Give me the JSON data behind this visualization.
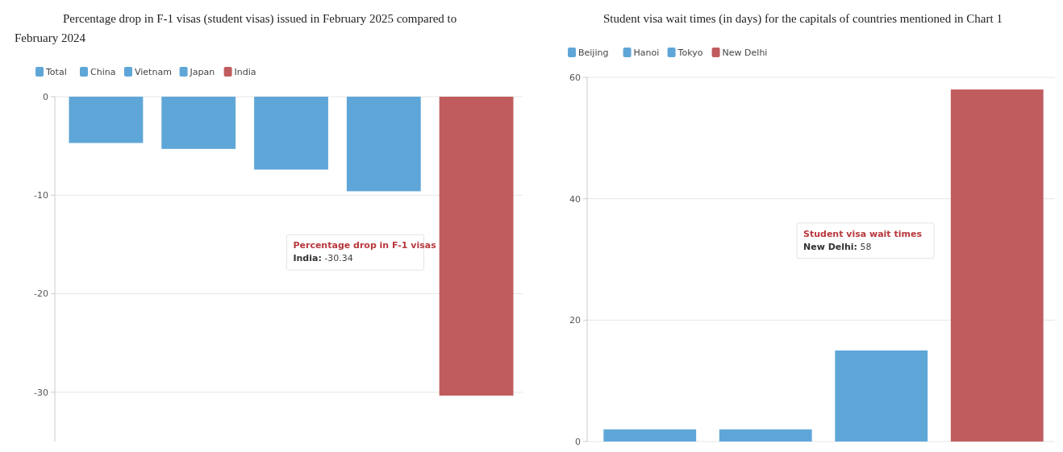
{
  "chart_data": [
    {
      "type": "bar",
      "title": "Percentage drop in F-1 visas (student visas) issued in February 2025 compared to February 2024",
      "categories": [
        null
      ],
      "series": [
        {
          "name": "Total",
          "color": "#5fa6d8",
          "values": [
            -4.7
          ]
        },
        {
          "name": "China",
          "color": "#5fa6d8",
          "values": [
            -5.3
          ]
        },
        {
          "name": "Vietnam",
          "color": "#5fa6d8",
          "values": [
            -7.4
          ]
        },
        {
          "name": "Japan",
          "color": "#5fa6d8",
          "values": [
            -9.6
          ]
        },
        {
          "name": "India",
          "color": "#c05c5e",
          "values": [
            -30.34
          ]
        }
      ],
      "ylim": [
        -35,
        0
      ],
      "yticks": [
        0,
        -10,
        -20,
        -30
      ],
      "grid": "y",
      "legend": "top left",
      "annotations": [
        "Percentage drop in F-1 visas\nIndia: -30.34"
      ]
    },
    {
      "type": "bar",
      "title": "Student visa wait times (in days) for the capitals of countries mentioned in Chart 1",
      "categories": [
        null
      ],
      "series": [
        {
          "name": "Beijing",
          "color": "#5fa6d8",
          "values": [
            2
          ]
        },
        {
          "name": "Hanoi",
          "color": "#5fa6d8",
          "values": [
            2
          ]
        },
        {
          "name": "Tokyo",
          "color": "#5fa6d8",
          "values": [
            15
          ]
        },
        {
          "name": "New Delhi",
          "color": "#c05c5e",
          "values": [
            58
          ]
        }
      ],
      "ylim": [
        0,
        60
      ],
      "yticks": [
        0,
        20,
        40,
        60
      ],
      "grid": "y",
      "legend": "top left",
      "annotations": [
        "Student visa wait times\nNew Delhi: 58"
      ]
    }
  ]
}
